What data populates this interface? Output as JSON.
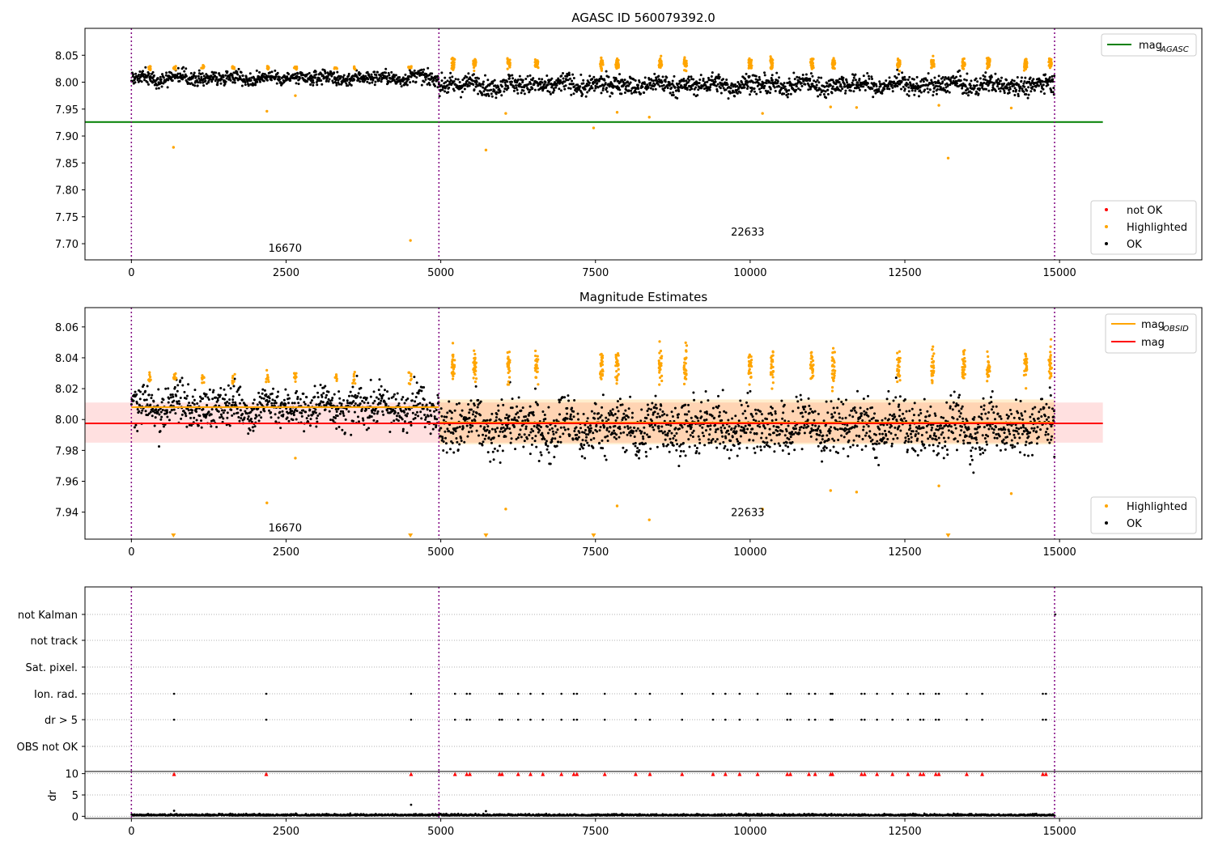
{
  "chart_data": [
    {
      "type": "scatter",
      "title": "AGASC ID 560079392.0",
      "xlim": [
        -750,
        17300
      ],
      "ylim": [
        7.67,
        8.1
      ],
      "xticks": [
        0,
        2500,
        5000,
        7500,
        10000,
        12500,
        15000
      ],
      "yticks": [
        7.7,
        7.75,
        7.8,
        7.85,
        7.9,
        7.95,
        8.0,
        8.05
      ],
      "ytick_decimals": 2,
      "obs_boundaries": [
        0,
        4970,
        14920
      ],
      "obsid_labels": [
        {
          "text": "16670",
          "x": 2485,
          "y": 7.685
        },
        {
          "text": "22633",
          "x": 9960,
          "y": 7.715
        }
      ],
      "segments": [
        {
          "x0": 0,
          "x1": 4970,
          "ok_center": 8.008,
          "ok_spread": 0.0085
        },
        {
          "x0": 4970,
          "x1": 14920,
          "ok_center": 7.995,
          "ok_spread": 0.0115
        }
      ],
      "reference_lines": [
        {
          "name": "mag_AGASC",
          "y": 7.926,
          "x0": -750,
          "x1": 15700,
          "color": "#008000"
        }
      ],
      "highlight_clusters_x": [
        300,
        700,
        1150,
        1650,
        2200,
        2650,
        3300,
        3600,
        4500,
        5200,
        5550,
        6100,
        6550,
        7600,
        7850,
        8550,
        8950,
        10000,
        10350,
        11000,
        11350,
        12400,
        12950,
        13450,
        13850,
        14450,
        14850
      ],
      "highlight_outliers": [
        {
          "x": 680,
          "y": 7.879
        },
        {
          "x": 2190,
          "y": 7.946
        },
        {
          "x": 2650,
          "y": 7.975
        },
        {
          "x": 4510,
          "y": 7.706
        },
        {
          "x": 5730,
          "y": 7.874
        },
        {
          "x": 6050,
          "y": 7.942
        },
        {
          "x": 7470,
          "y": 7.915
        },
        {
          "x": 7850,
          "y": 7.944
        },
        {
          "x": 8370,
          "y": 7.935
        },
        {
          "x": 10200,
          "y": 7.942
        },
        {
          "x": 11300,
          "y": 7.954
        },
        {
          "x": 11720,
          "y": 7.953
        },
        {
          "x": 13050,
          "y": 7.957
        },
        {
          "x": 13200,
          "y": 7.859
        },
        {
          "x": 14220,
          "y": 7.952
        }
      ],
      "legend_lines": [
        {
          "label": "mag",
          "sub": "AGASC",
          "color": "#008000"
        }
      ],
      "legend_points": [
        {
          "label": "not OK",
          "color": "#ff0000"
        },
        {
          "label": "Highlighted",
          "color": "#ffa500"
        },
        {
          "label": "OK",
          "color": "#000000"
        }
      ]
    },
    {
      "type": "scatter",
      "title": "Magnitude Estimates",
      "xlim": [
        -750,
        17300
      ],
      "ylim": [
        7.9225,
        8.0725
      ],
      "xticks": [
        0,
        2500,
        5000,
        7500,
        10000,
        12500,
        15000
      ],
      "yticks": [
        7.94,
        7.96,
        7.98,
        8.0,
        8.02,
        8.04,
        8.06
      ],
      "ytick_decimals": 2,
      "obs_boundaries": [
        0,
        4970,
        14920
      ],
      "obsid_labels": [
        {
          "text": "16670",
          "x": 2485,
          "y": 7.9275
        },
        {
          "text": "22633",
          "x": 9960,
          "y": 7.9375
        }
      ],
      "segments": [
        {
          "x0": 0,
          "x1": 4970,
          "ok_center": 8.008,
          "ok_spread": 0.0085
        },
        {
          "x0": 4970,
          "x1": 14920,
          "ok_center": 7.995,
          "ok_spread": 0.0115
        }
      ],
      "bands": [
        {
          "x0": -750,
          "x1": 15700,
          "y0": 7.985,
          "y1": 8.011,
          "color": "#ff0000",
          "opacity": 0.12
        },
        {
          "x0": 4970,
          "x1": 14920,
          "y0": 7.984,
          "y1": 8.013,
          "color": "#ffa500",
          "opacity": 0.2
        }
      ],
      "reference_lines": [
        {
          "name": "mag_OBSID",
          "y": 8.008,
          "x0": 0,
          "x1": 4970,
          "color": "#ffa500"
        },
        {
          "name": "mag_OBSID",
          "y": 7.998,
          "x0": 4970,
          "x1": 14920,
          "color": "#ffa500"
        },
        {
          "name": "mag",
          "y": 7.9975,
          "x0": -750,
          "x1": 15700,
          "color": "#ff0000"
        }
      ],
      "highlight_clusters_x": [
        300,
        700,
        1150,
        1650,
        2200,
        2650,
        3300,
        3600,
        4500,
        5200,
        5550,
        6100,
        6550,
        7600,
        7850,
        8550,
        8950,
        10000,
        10350,
        11000,
        11350,
        12400,
        12950,
        13450,
        13850,
        14450,
        14850
      ],
      "highlight_outliers": [
        {
          "x": 2190,
          "y": 7.946
        },
        {
          "x": 2650,
          "y": 7.975
        },
        {
          "x": 6050,
          "y": 7.942
        },
        {
          "x": 7850,
          "y": 7.944
        },
        {
          "x": 8370,
          "y": 7.935
        },
        {
          "x": 10200,
          "y": 7.942
        },
        {
          "x": 11300,
          "y": 7.954
        },
        {
          "x": 11720,
          "y": 7.953
        },
        {
          "x": 13050,
          "y": 7.957
        },
        {
          "x": 14220,
          "y": 7.952
        }
      ],
      "offscale_markers_x": [
        680,
        4510,
        5730,
        7470,
        13200
      ],
      "legend_lines": [
        {
          "label": "mag",
          "sub": "OBSID",
          "color": "#ffa500"
        },
        {
          "label": "mag",
          "sub": "",
          "color": "#ff0000"
        }
      ],
      "legend_points": [
        {
          "label": "Highlighted",
          "color": "#ffa500"
        },
        {
          "label": "OK",
          "color": "#000000"
        }
      ]
    },
    {
      "type": "scatter",
      "title": "",
      "xlim": [
        -750,
        17300
      ],
      "flag_rows": [
        "not Kalman",
        "not track",
        "Sat. pixel.",
        "Ion. rad.",
        "dr > 5",
        "OBS not OK"
      ],
      "obs_boundaries": [
        0,
        4970,
        14920
      ],
      "event_times": [
        690,
        2180,
        4520,
        5230,
        5420,
        5470,
        5950,
        5990,
        6250,
        6450,
        6650,
        6950,
        7150,
        7200,
        7650,
        8150,
        8380,
        8900,
        9400,
        9600,
        9830,
        10120,
        10600,
        10650,
        10950,
        11050,
        11300,
        11330,
        11800,
        11850,
        12050,
        12300,
        12550,
        12750,
        12800,
        13000,
        13050,
        13500,
        13750,
        14730,
        14780
      ],
      "not_kalman_x": [
        14930
      ]
    },
    {
      "type": "scatter",
      "title": "",
      "xlim": [
        -750,
        17300
      ],
      "ylim": [
        -0.5,
        10.5
      ],
      "xticks": [
        0,
        2500,
        5000,
        7500,
        10000,
        12500,
        15000
      ],
      "yticks": [
        0,
        5,
        10
      ],
      "ylabel": "dr",
      "obs_boundaries": [
        0,
        4970,
        14920
      ],
      "dr_outliers": [
        {
          "x": 690,
          "y": 1.3
        },
        {
          "x": 4520,
          "y": 2.7
        },
        {
          "x": 5730,
          "y": 1.2
        }
      ],
      "capped_marker_y": 9.9
    }
  ]
}
